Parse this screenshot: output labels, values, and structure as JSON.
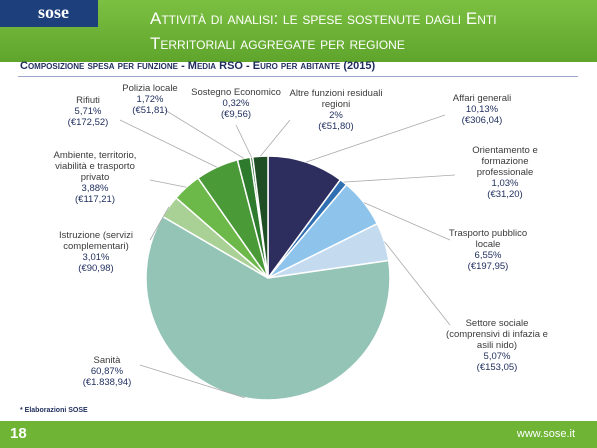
{
  "header": {
    "logo": "sose",
    "title": "Attività di analisi: le spese sostenute dagli Enti Territoriali aggregate per regione"
  },
  "chart_data": {
    "type": "pie",
    "title": "Composizione spesa per funzione - Media RSO - Euro per abitante (2015)",
    "categories": [
      "Affari generali",
      "Orientamento e formazione professionale",
      "Trasporto pubblico locale",
      "Settore sociale (comprensivi di infazia e asili nido)",
      "Sanità",
      "Istruzione (servizi complementari)",
      "Ambiente, territorio, viabilità e trasporto privato",
      "Rifiuti",
      "Polizia locale",
      "Sostegno Economico",
      "Altre funzioni residuali regioni"
    ],
    "values": [
      10.13,
      1.03,
      6.55,
      5.07,
      60.87,
      3.01,
      3.88,
      5.71,
      1.72,
      0.32,
      2
    ],
    "value_labels": [
      "10,13%",
      "1,03%",
      "6,55%",
      "5,07%",
      "60,87%",
      "3,01%",
      "3,88%",
      "5,71%",
      "1,72%",
      "0,32%",
      "2%"
    ],
    "amount_labels": [
      "(€306,04)",
      "(€31,20)",
      "(€197,95)",
      "(€153,05)",
      "(€1.838,94)",
      "(€90,98)",
      "(€117,21)",
      "(€172,52)",
      "(€51,81)",
      "(€9,56)",
      "(€51,80)"
    ],
    "colors": [
      "#2d2d5e",
      "#2f6fb2",
      "#8ec3ec",
      "#c4dbef",
      "#93c4b6",
      "#a9d095",
      "#6cb94a",
      "#4b9a38",
      "#2f7b2d",
      "#1f6124",
      "#1f4e24"
    ]
  },
  "note": "* Elaborazioni SOSE",
  "footer": {
    "page": "18",
    "url": "www.sose.it"
  }
}
